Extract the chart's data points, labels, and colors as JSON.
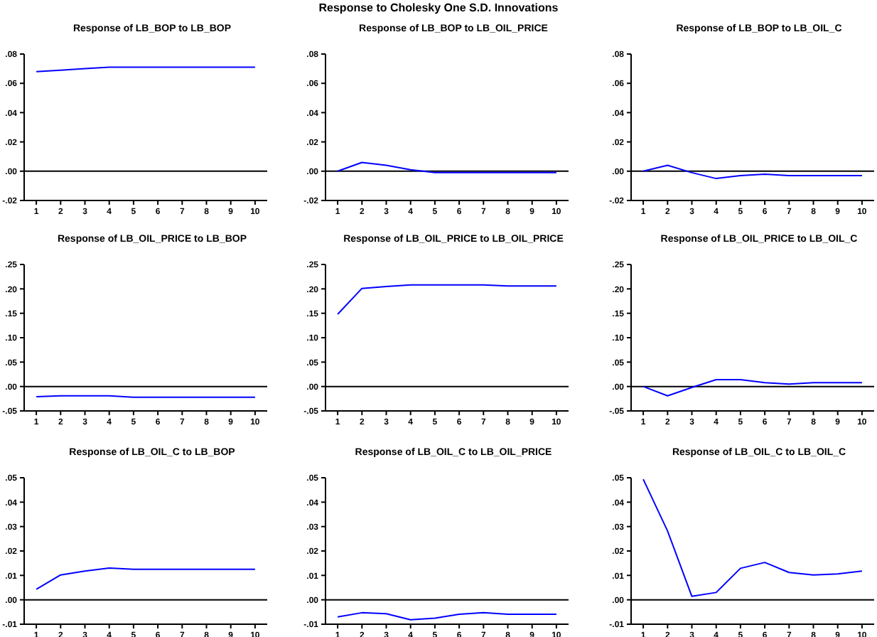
{
  "chart_data": [
    {
      "type": "line",
      "title": "Response of LB_BOP to LB_BOP",
      "annotations": [
        "Response to Cholesky One S.D. Innovations"
      ],
      "categories": [
        "1",
        "2",
        "3",
        "4",
        "5",
        "6",
        "7",
        "8",
        "9",
        "10"
      ],
      "series": [
        {
          "color": "#0000ff",
          "values": [
            0.068,
            0.069,
            0.07,
            0.071,
            0.071,
            0.071,
            0.071,
            0.071,
            0.071,
            0.071
          ]
        }
      ],
      "ylim": [
        -0.02,
        0.08
      ],
      "yticks": [
        {
          "value": -0.02,
          "label": "-.02"
        },
        {
          "value": 0,
          "label": ".00"
        },
        {
          "value": 0.02,
          "label": ".02"
        },
        {
          "value": 0.04,
          "label": ".04"
        },
        {
          "value": 0.06,
          "label": ".06"
        },
        {
          "value": 0.08,
          "label": ".08"
        }
      ],
      "ref_lines": [
        {
          "axis": "y",
          "value": 0,
          "color": "#000000"
        }
      ]
    },
    {
      "type": "line",
      "title": "Response of LB_BOP to LB_OIL_PRICE",
      "categories": [
        "1",
        "2",
        "3",
        "4",
        "5",
        "6",
        "7",
        "8",
        "9",
        "10"
      ],
      "series": [
        {
          "color": "#0000ff",
          "values": [
            0,
            0.006,
            0.004,
            0.001,
            -0.001,
            -0.001,
            -0.001,
            -0.001,
            -0.001,
            -0.001
          ]
        }
      ],
      "ylim": [
        -0.02,
        0.08
      ],
      "yticks": [
        {
          "value": -0.02,
          "label": "-.02"
        },
        {
          "value": 0,
          "label": ".00"
        },
        {
          "value": 0.02,
          "label": ".02"
        },
        {
          "value": 0.04,
          "label": ".04"
        },
        {
          "value": 0.06,
          "label": ".06"
        },
        {
          "value": 0.08,
          "label": ".08"
        }
      ],
      "ref_lines": [
        {
          "axis": "y",
          "value": 0,
          "color": "#000000"
        }
      ]
    },
    {
      "type": "line",
      "title": "Response of LB_BOP to LB_OIL_C",
      "categories": [
        "1",
        "2",
        "3",
        "4",
        "5",
        "6",
        "7",
        "8",
        "9",
        "10"
      ],
      "series": [
        {
          "color": "#0000ff",
          "values": [
            0,
            0.004,
            -0.001,
            -0.005,
            -0.003,
            -0.002,
            -0.003,
            -0.003,
            -0.003,
            -0.003
          ]
        }
      ],
      "ylim": [
        -0.02,
        0.08
      ],
      "yticks": [
        {
          "value": -0.02,
          "label": "-.02"
        },
        {
          "value": 0,
          "label": ".00"
        },
        {
          "value": 0.02,
          "label": ".02"
        },
        {
          "value": 0.04,
          "label": ".04"
        },
        {
          "value": 0.06,
          "label": ".06"
        },
        {
          "value": 0.08,
          "label": ".08"
        }
      ],
      "ref_lines": [
        {
          "axis": "y",
          "value": 0,
          "color": "#000000"
        }
      ]
    },
    {
      "type": "line",
      "title": "Response of LB_OIL_PRICE to LB_BOP",
      "categories": [
        "1",
        "2",
        "3",
        "4",
        "5",
        "6",
        "7",
        "8",
        "9",
        "10"
      ],
      "series": [
        {
          "color": "#0000ff",
          "values": [
            -0.021,
            -0.019,
            -0.019,
            -0.019,
            -0.022,
            -0.022,
            -0.022,
            -0.022,
            -0.022,
            -0.022
          ]
        }
      ],
      "ylim": [
        -0.05,
        0.25
      ],
      "yticks": [
        {
          "value": -0.05,
          "label": "-.05"
        },
        {
          "value": 0,
          "label": ".00"
        },
        {
          "value": 0.05,
          "label": ".05"
        },
        {
          "value": 0.1,
          "label": ".10"
        },
        {
          "value": 0.15,
          "label": ".15"
        },
        {
          "value": 0.2,
          "label": ".20"
        },
        {
          "value": 0.25,
          "label": ".25"
        }
      ],
      "ref_lines": [
        {
          "axis": "y",
          "value": 0,
          "color": "#000000"
        }
      ]
    },
    {
      "type": "line",
      "title": "Response of LB_OIL_PRICE to LB_OIL_PRICE",
      "categories": [
        "1",
        "2",
        "3",
        "4",
        "5",
        "6",
        "7",
        "8",
        "9",
        "10"
      ],
      "series": [
        {
          "color": "#0000ff",
          "values": [
            0.148,
            0.201,
            0.205,
            0.208,
            0.208,
            0.208,
            0.208,
            0.206,
            0.206,
            0.206
          ]
        }
      ],
      "ylim": [
        -0.05,
        0.25
      ],
      "yticks": [
        {
          "value": -0.05,
          "label": "-.05"
        },
        {
          "value": 0,
          "label": ".00"
        },
        {
          "value": 0.05,
          "label": ".05"
        },
        {
          "value": 0.1,
          "label": ".10"
        },
        {
          "value": 0.15,
          "label": ".15"
        },
        {
          "value": 0.2,
          "label": ".20"
        },
        {
          "value": 0.25,
          "label": ".25"
        }
      ],
      "ref_lines": [
        {
          "axis": "y",
          "value": 0,
          "color": "#000000"
        }
      ]
    },
    {
      "type": "line",
      "title": "Response of LB_OIL_PRICE to LB_OIL_C",
      "categories": [
        "1",
        "2",
        "3",
        "4",
        "5",
        "6",
        "7",
        "8",
        "9",
        "10"
      ],
      "series": [
        {
          "color": "#0000ff",
          "values": [
            0,
            -0.019,
            -0.002,
            0.014,
            0.014,
            0.008,
            0.005,
            0.008,
            0.008,
            0.008
          ]
        }
      ],
      "ylim": [
        -0.05,
        0.25
      ],
      "yticks": [
        {
          "value": -0.05,
          "label": "-.05"
        },
        {
          "value": 0,
          "label": ".00"
        },
        {
          "value": 0.05,
          "label": ".05"
        },
        {
          "value": 0.1,
          "label": ".10"
        },
        {
          "value": 0.15,
          "label": ".15"
        },
        {
          "value": 0.2,
          "label": ".20"
        },
        {
          "value": 0.25,
          "label": ".25"
        }
      ],
      "ref_lines": [
        {
          "axis": "y",
          "value": 0,
          "color": "#000000"
        }
      ]
    },
    {
      "type": "line",
      "title": "Response of LB_OIL_C to LB_BOP",
      "categories": [
        "1",
        "2",
        "3",
        "4",
        "5",
        "6",
        "7",
        "8",
        "9",
        "10"
      ],
      "series": [
        {
          "color": "#0000ff",
          "values": [
            0.0043,
            0.0102,
            0.0118,
            0.013,
            0.0125,
            0.0125,
            0.0125,
            0.0125,
            0.0125,
            0.0125
          ]
        }
      ],
      "ylim": [
        -0.01,
        0.05
      ],
      "yticks": [
        {
          "value": -0.01,
          "label": "-.01"
        },
        {
          "value": 0,
          "label": ".00"
        },
        {
          "value": 0.01,
          "label": ".01"
        },
        {
          "value": 0.02,
          "label": ".02"
        },
        {
          "value": 0.03,
          "label": ".03"
        },
        {
          "value": 0.04,
          "label": ".04"
        },
        {
          "value": 0.05,
          "label": ".05"
        }
      ],
      "ref_lines": [
        {
          "axis": "y",
          "value": 0,
          "color": "#000000"
        }
      ]
    },
    {
      "type": "line",
      "title": "Response of LB_OIL_C to LB_OIL_PRICE",
      "categories": [
        "1",
        "2",
        "3",
        "4",
        "5",
        "6",
        "7",
        "8",
        "9",
        "10"
      ],
      "series": [
        {
          "color": "#0000ff",
          "values": [
            -0.007,
            -0.0053,
            -0.0057,
            -0.0082,
            -0.0075,
            -0.0059,
            -0.0053,
            -0.0059,
            -0.0059,
            -0.0059
          ]
        }
      ],
      "ylim": [
        -0.01,
        0.05
      ],
      "yticks": [
        {
          "value": -0.01,
          "label": "-.01"
        },
        {
          "value": 0,
          "label": ".00"
        },
        {
          "value": 0.01,
          "label": ".01"
        },
        {
          "value": 0.02,
          "label": ".02"
        },
        {
          "value": 0.03,
          "label": ".03"
        },
        {
          "value": 0.04,
          "label": ".04"
        },
        {
          "value": 0.05,
          "label": ".05"
        }
      ],
      "ref_lines": [
        {
          "axis": "y",
          "value": 0,
          "color": "#000000"
        }
      ]
    },
    {
      "type": "line",
      "title": "Response of LB_OIL_C to LB_OIL_C",
      "categories": [
        "1",
        "2",
        "3",
        "4",
        "5",
        "6",
        "7",
        "8",
        "9",
        "10"
      ],
      "series": [
        {
          "color": "#0000ff",
          "values": [
            0.0494,
            0.0282,
            0.0014,
            0.003,
            0.0129,
            0.0153,
            0.0112,
            0.0102,
            0.0106,
            0.0118
          ]
        }
      ],
      "ylim": [
        -0.01,
        0.05
      ],
      "yticks": [
        {
          "value": -0.01,
          "label": "-.01"
        },
        {
          "value": 0,
          "label": ".00"
        },
        {
          "value": 0.01,
          "label": ".01"
        },
        {
          "value": 0.02,
          "label": ".02"
        },
        {
          "value": 0.03,
          "label": ".03"
        },
        {
          "value": 0.04,
          "label": ".04"
        },
        {
          "value": 0.05,
          "label": ".05"
        }
      ],
      "ref_lines": [
        {
          "axis": "y",
          "value": 0,
          "color": "#000000"
        }
      ]
    }
  ]
}
